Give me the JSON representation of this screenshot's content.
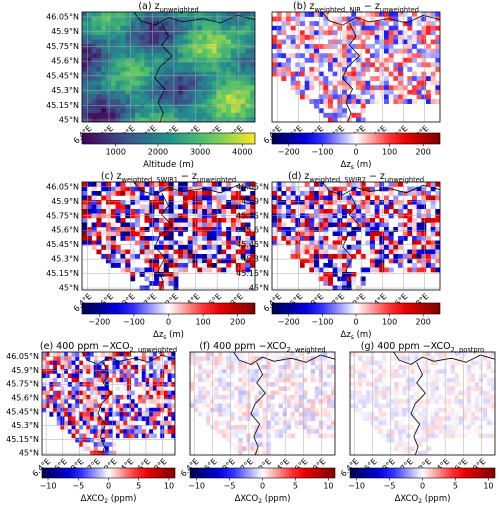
{
  "chart_data": [
    {
      "type": "map",
      "title": [
        {
          "text": "(a) z"
        },
        {
          "sub": "unweighted"
        }
      ],
      "xlim": [
        6.35,
        7.95
      ],
      "ylim": [
        44.98,
        46.1
      ],
      "xticks": [
        {
          "value": 6.4,
          "label": "6.4°E"
        },
        {
          "value": 6.6,
          "label": "6.6°E"
        },
        {
          "value": 6.8,
          "label": "6.8°E"
        },
        {
          "value": 7,
          "label": "7°E"
        },
        {
          "value": 7.2,
          "label": "7.2°E"
        },
        {
          "value": 7.4,
          "label": "7.4°E"
        },
        {
          "value": 7.6,
          "label": "7.6°E"
        },
        {
          "value": 7.8,
          "label": "7.8°E"
        }
      ],
      "yticks": [
        {
          "value": 46.05,
          "label": "46.05°N"
        },
        {
          "value": 45.9,
          "label": "45.9°N"
        },
        {
          "value": 45.75,
          "label": "45.75°N"
        },
        {
          "value": 45.6,
          "label": "45.6°N"
        },
        {
          "value": 45.45,
          "label": "45.45°N"
        },
        {
          "value": 45.3,
          "label": "45.3°N"
        },
        {
          "value": 45.15,
          "label": "45.15°N"
        },
        {
          "value": 45,
          "label": "45°N"
        }
      ],
      "colorbar": {
        "colormap": "viridis",
        "lim": [
          200,
          4300
        ],
        "ticks": [
          1000,
          2000,
          3000,
          4000
        ],
        "label": [
          {
            "text": "Altitude (m)"
          }
        ]
      }
    },
    {
      "type": "map",
      "title": [
        {
          "text": "(b) z"
        },
        {
          "sub": "weighted, NIR"
        },
        {
          "text": " − z"
        },
        {
          "sub": "unweighted"
        }
      ],
      "xlim": [
        6.35,
        7.95
      ],
      "ylim": [
        44.98,
        46.1
      ],
      "xticks": [
        {
          "value": 6.4,
          "label": "6.4°E"
        },
        {
          "value": 6.6,
          "label": "6.6°E"
        },
        {
          "value": 6.8,
          "label": "6.8°E"
        },
        {
          "value": 7,
          "label": "7°E"
        },
        {
          "value": 7.2,
          "label": "7.2°E"
        },
        {
          "value": 7.4,
          "label": "7.4°E"
        },
        {
          "value": 7.6,
          "label": "7.6°E"
        },
        {
          "value": 7.8,
          "label": "7.8°E"
        }
      ],
      "colorbar": {
        "colormap": "seismic",
        "lim": [
          -250,
          250
        ],
        "ticks": [
          {
            "value": -200,
            "label": "−200"
          },
          {
            "value": -100,
            "label": "−100"
          },
          0,
          100,
          200
        ],
        "label": [
          {
            "text": "Δz"
          },
          {
            "sub": "s"
          },
          {
            "text": " (m)"
          }
        ]
      }
    },
    {
      "type": "map",
      "title": [
        {
          "text": "(c) z"
        },
        {
          "sub": "weighted, SWIR1"
        },
        {
          "text": " − z"
        },
        {
          "sub": "unweighted"
        }
      ],
      "xlim": [
        6.35,
        7.95
      ],
      "ylim": [
        44.98,
        46.1
      ],
      "xticks": [
        {
          "value": 6.4,
          "label": "6.4°E"
        },
        {
          "value": 6.6,
          "label": "6.6°E"
        },
        {
          "value": 6.8,
          "label": "6.8°E"
        },
        {
          "value": 7,
          "label": "7°E"
        },
        {
          "value": 7.2,
          "label": "7.2°E"
        },
        {
          "value": 7.4,
          "label": "7.4°E"
        },
        {
          "value": 7.6,
          "label": "7.6°E"
        },
        {
          "value": 7.8,
          "label": "7.8°E"
        }
      ],
      "yticks": [
        {
          "value": 46.05,
          "label": "46.05°N"
        },
        {
          "value": 45.9,
          "label": "45.9°N"
        },
        {
          "value": 45.75,
          "label": "45.75°N"
        },
        {
          "value": 45.6,
          "label": "45.6°N"
        },
        {
          "value": 45.45,
          "label": "45.45°N"
        },
        {
          "value": 45.3,
          "label": "45.3°N"
        },
        {
          "value": 45.15,
          "label": "45.15°N"
        },
        {
          "value": 45,
          "label": "45°N"
        }
      ],
      "colorbar": {
        "colormap": "seismic",
        "lim": [
          -250,
          250
        ],
        "ticks": [
          {
            "value": -200,
            "label": "−200"
          },
          {
            "value": -100,
            "label": "−100"
          },
          0,
          100,
          200
        ],
        "label": [
          {
            "text": "Δz"
          },
          {
            "sub": "s"
          },
          {
            "text": " (m)"
          }
        ]
      }
    },
    {
      "type": "map",
      "title": [
        {
          "text": "(d) z"
        },
        {
          "sub": "weighted, SWIR2"
        },
        {
          "text": " − z"
        },
        {
          "sub": "unweighted"
        }
      ],
      "xlim": [
        6.35,
        7.95
      ],
      "ylim": [
        44.98,
        46.1
      ],
      "xticks": [
        {
          "value": 6.4,
          "label": "6.4°E"
        },
        {
          "value": 6.6,
          "label": "6.6°E"
        },
        {
          "value": 6.8,
          "label": "6.8°E"
        },
        {
          "value": 7,
          "label": "7°E"
        },
        {
          "value": 7.2,
          "label": "7.2°E"
        },
        {
          "value": 7.4,
          "label": "7.4°E"
        },
        {
          "value": 7.6,
          "label": "7.6°E"
        },
        {
          "value": 7.8,
          "label": "7.8°E"
        }
      ],
      "yticks": [
        {
          "value": 46.05,
          "label": "46.05°N"
        },
        {
          "value": 45.9,
          "label": "45.9°N"
        },
        {
          "value": 45.75,
          "label": "45.75°N"
        },
        {
          "value": 45.6,
          "label": "45.6°N"
        },
        {
          "value": 45.45,
          "label": "45.45°N"
        },
        {
          "value": 45.3,
          "label": "45.3°N"
        },
        {
          "value": 45.15,
          "label": "45.15°N"
        },
        {
          "value": 45,
          "label": "45°N"
        }
      ],
      "colorbar": {
        "colormap": "seismic",
        "lim": [
          -250,
          250
        ],
        "ticks": [
          {
            "value": -200,
            "label": "−200"
          },
          {
            "value": -100,
            "label": "−100"
          },
          0,
          100,
          200
        ],
        "label": [
          {
            "text": "Δz"
          },
          {
            "sub": "s"
          },
          {
            "text": " (m)"
          }
        ]
      }
    },
    {
      "type": "map",
      "title": [
        {
          "text": "(e) 400 ppm −XCO"
        },
        {
          "sub": "2, unweighted"
        }
      ],
      "xlim": [
        6.35,
        7.95
      ],
      "ylim": [
        44.98,
        46.1
      ],
      "xticks": [
        {
          "value": 6.4,
          "label": "6.4°E"
        },
        {
          "value": 6.6,
          "label": "6.6°E"
        },
        {
          "value": 6.8,
          "label": "6.8°E"
        },
        {
          "value": 7,
          "label": "7°E"
        },
        {
          "value": 7.2,
          "label": "7.2°E"
        },
        {
          "value": 7.4,
          "label": "7.4°E"
        },
        {
          "value": 7.6,
          "label": "7.6°E"
        },
        {
          "value": 7.8,
          "label": "7.8°E"
        }
      ],
      "yticks": [
        {
          "value": 46.05,
          "label": "46.05°N"
        },
        {
          "value": 45.9,
          "label": "45.9°N"
        },
        {
          "value": 45.75,
          "label": "45.75°N"
        },
        {
          "value": 45.6,
          "label": "45.6°N"
        },
        {
          "value": 45.45,
          "label": "45.45°N"
        },
        {
          "value": 45.3,
          "label": "45.3°N"
        },
        {
          "value": 45.15,
          "label": "45.15°N"
        },
        {
          "value": 45,
          "label": "45°N"
        }
      ],
      "colorbar": {
        "colormap": "seismic",
        "lim": [
          -11,
          11
        ],
        "ticks": [
          {
            "value": -10,
            "label": "−10"
          },
          {
            "value": -5,
            "label": "−5"
          },
          0,
          5,
          10
        ],
        "label": [
          {
            "text": "ΔXCO"
          },
          {
            "sub": "2"
          },
          {
            "text": " (ppm)"
          }
        ]
      }
    },
    {
      "type": "map",
      "title": [
        {
          "text": "(f) 400 ppm −XCO"
        },
        {
          "sub": "2, weighted"
        }
      ],
      "xlim": [
        6.35,
        7.95
      ],
      "ylim": [
        44.98,
        46.1
      ],
      "xticks": [
        {
          "value": 6.4,
          "label": "6.4°E"
        },
        {
          "value": 6.6,
          "label": "6.6°E"
        },
        {
          "value": 6.8,
          "label": "6.8°E"
        },
        {
          "value": 7,
          "label": "7°E"
        },
        {
          "value": 7.2,
          "label": "7.2°E"
        },
        {
          "value": 7.4,
          "label": "7.4°E"
        },
        {
          "value": 7.6,
          "label": "7.6°E"
        },
        {
          "value": 7.8,
          "label": "7.8°E"
        }
      ],
      "colorbar": {
        "colormap": "seismic",
        "lim": [
          -11,
          11
        ],
        "ticks": [
          {
            "value": -10,
            "label": "−10"
          },
          {
            "value": -5,
            "label": "−5"
          },
          0,
          5,
          10
        ],
        "label": [
          {
            "text": "ΔXCO"
          },
          {
            "sub": "2"
          },
          {
            "text": " (ppm)"
          }
        ]
      }
    },
    {
      "type": "map",
      "title": [
        {
          "text": "(g) 400 ppm −XCO"
        },
        {
          "sub": "2, postpro"
        }
      ],
      "xlim": [
        6.35,
        7.95
      ],
      "ylim": [
        44.98,
        46.1
      ],
      "xticks": [
        {
          "value": 6.4,
          "label": "6.4°E"
        },
        {
          "value": 6.6,
          "label": "6.6°E"
        },
        {
          "value": 6.8,
          "label": "6.8°E"
        },
        {
          "value": 7,
          "label": "7°E"
        },
        {
          "value": 7.2,
          "label": "7.2°E"
        },
        {
          "value": 7.4,
          "label": "7.4°E"
        },
        {
          "value": 7.6,
          "label": "7.6°E"
        },
        {
          "value": 7.8,
          "label": "7.8°E"
        }
      ],
      "colorbar": {
        "colormap": "seismic",
        "lim": [
          -11,
          11
        ],
        "ticks": [
          {
            "value": -10,
            "label": "−10"
          },
          {
            "value": -5,
            "label": "−5"
          },
          0,
          5,
          10
        ],
        "label": [
          {
            "text": "ΔXCO"
          },
          {
            "sub": "2"
          },
          {
            "text": " (ppm)"
          }
        ]
      }
    }
  ]
}
